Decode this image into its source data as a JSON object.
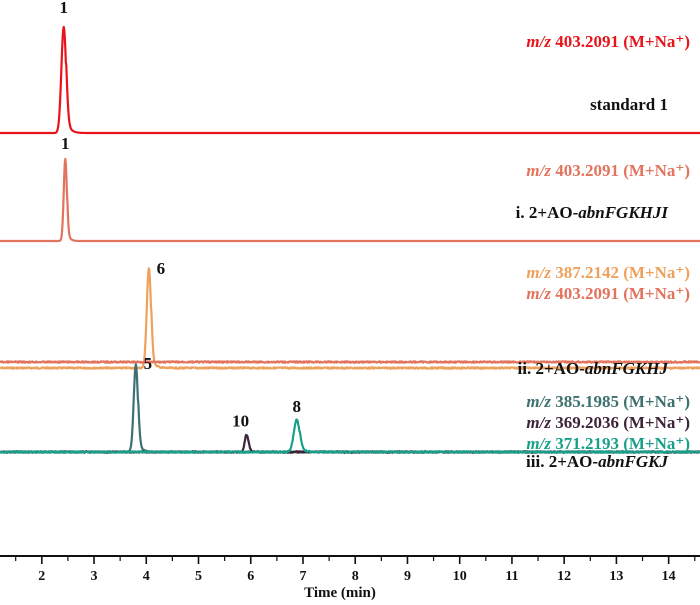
{
  "chart_data": {
    "type": "line",
    "title": "",
    "xlabel": "Time (min)",
    "xlim": [
      1.2,
      14.6
    ],
    "x_ticks": [
      "2",
      "3",
      "4",
      "5",
      "6",
      "7",
      "8",
      "9",
      "10",
      "11",
      "12",
      "13",
      "14"
    ],
    "grid": false,
    "legend": "right side of each panel, stacked",
    "panels": [
      {
        "name": "standard 1",
        "label_prefix": "",
        "label_plain": "standard 1",
        "label_italic": "",
        "traces": [
          {
            "mz": "403.2091",
            "adduct": "(M+Na⁺)",
            "color": "#e8141c",
            "baseline": 0,
            "peaks": [
              {
                "x": 2.42,
                "height": 1.0,
                "width": 0.045,
                "label": "1"
              }
            ]
          }
        ]
      },
      {
        "name": "i",
        "label_prefix": "i.",
        "label_plain": "2+AO-",
        "label_italic": "abnFGKHJI",
        "traces": [
          {
            "mz": "403.2091",
            "adduct": "(M+Na⁺)",
            "color": "#e2735d",
            "baseline": 0,
            "peaks": [
              {
                "x": 2.45,
                "height": 1.0,
                "width": 0.03,
                "label": "1"
              }
            ]
          }
        ]
      },
      {
        "name": "ii",
        "label_prefix": "ii.",
        "label_plain": "2+AO-",
        "label_italic": "abnFGKHJ",
        "traces": [
          {
            "mz": "387.2142",
            "adduct": "(M+Na⁺)",
            "color": "#eea15c",
            "baseline": 0,
            "peaks": [
              {
                "x": 4.05,
                "height": 1.0,
                "width": 0.04,
                "label": "6"
              }
            ]
          },
          {
            "mz": "403.2091",
            "adduct": "(M+Na⁺)",
            "color": "#e2735d",
            "baseline": 1,
            "peaks": []
          }
        ]
      },
      {
        "name": "iii",
        "label_prefix": "iii.",
        "label_plain": "2+AO-",
        "label_italic": "abnFGKJ",
        "traces": [
          {
            "mz": "385.1985",
            "adduct": "(M+Na⁺)",
            "color": "#3e7070",
            "baseline": 0,
            "peaks": [
              {
                "x": 3.8,
                "height": 1.0,
                "width": 0.04,
                "label": "5"
              }
            ]
          },
          {
            "mz": "369.2036",
            "adduct": "(M+Na⁺)",
            "color": "#3e2438",
            "baseline": 0,
            "peaks": [
              {
                "x": 5.92,
                "height": 0.2,
                "width": 0.035,
                "label": "10"
              }
            ]
          },
          {
            "mz": "371.2193",
            "adduct": "(M+Na⁺)",
            "color": "#18a08a",
            "baseline": 0,
            "peaks": [
              {
                "x": 6.88,
                "height": 0.37,
                "width": 0.055,
                "label": "8"
              }
            ]
          }
        ]
      }
    ]
  }
}
